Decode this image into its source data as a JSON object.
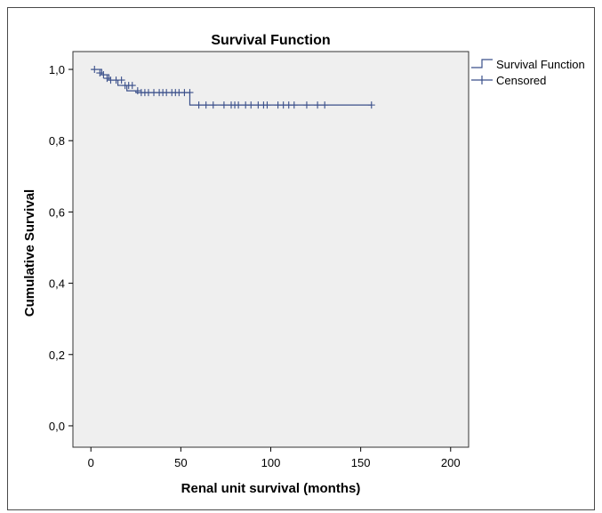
{
  "chart_data": {
    "type": "line",
    "title": "Survival Function",
    "xlabel": "Renal unit survival (months)",
    "ylabel": "Cumulative Survival",
    "xlim": [
      -10,
      210
    ],
    "ylim": [
      -0.06,
      1.05
    ],
    "x_ticks": [
      0,
      50,
      100,
      150,
      200
    ],
    "x_tick_labels": [
      "0",
      "50",
      "100",
      "150",
      "200"
    ],
    "y_ticks": [
      0.0,
      0.2,
      0.4,
      0.6,
      0.8,
      1.0
    ],
    "y_tick_labels": [
      "0,0",
      "0,2",
      "0,4",
      "0,6",
      "0,8",
      "1,0"
    ],
    "grid": false,
    "legend_position": "right",
    "colors": {
      "series": "#3a4f8a",
      "plot_background": "#efefef"
    },
    "series": [
      {
        "name": "Survival Function",
        "marker": "step",
        "x": [
          0,
          6,
          10,
          15,
          20,
          25,
          55,
          156
        ],
        "y": [
          1.0,
          0.985,
          0.97,
          0.955,
          0.94,
          0.935,
          0.9,
          0.9
        ]
      },
      {
        "name": "Censored",
        "marker": "plus",
        "x": [
          2,
          5,
          7,
          9,
          11,
          14,
          17,
          19,
          21,
          23,
          26,
          28,
          30,
          32,
          35,
          38,
          40,
          42,
          45,
          47,
          49,
          52,
          55,
          60,
          64,
          68,
          74,
          78,
          80,
          82,
          86,
          89,
          93,
          96,
          98,
          104,
          107,
          110,
          113,
          120,
          126,
          130,
          156
        ],
        "y": [
          1.0,
          0.99,
          0.985,
          0.975,
          0.97,
          0.97,
          0.97,
          0.955,
          0.955,
          0.955,
          0.94,
          0.935,
          0.935,
          0.935,
          0.935,
          0.935,
          0.935,
          0.935,
          0.935,
          0.935,
          0.935,
          0.935,
          0.935,
          0.9,
          0.9,
          0.9,
          0.9,
          0.9,
          0.9,
          0.9,
          0.9,
          0.9,
          0.9,
          0.9,
          0.9,
          0.9,
          0.9,
          0.9,
          0.9,
          0.9,
          0.9,
          0.9,
          0.9
        ]
      }
    ]
  }
}
